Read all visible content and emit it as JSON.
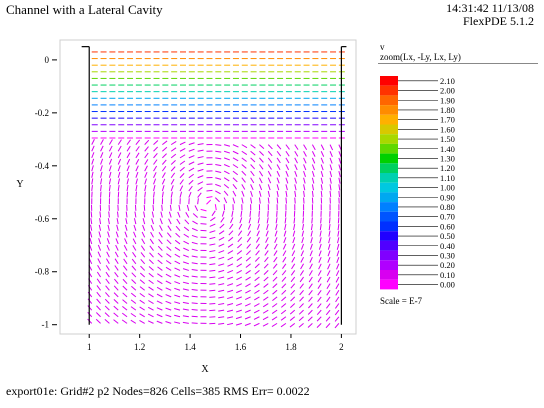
{
  "header": {
    "title": "Channel with a Lateral Cavity",
    "time": "14:31:42 11/13/08",
    "software": "FlexPDE 5.1.2"
  },
  "footer": {
    "info": "export01e:  Grid#2  p2  Nodes=826 Cells=385 RMS Err= 0.0022"
  },
  "legend": {
    "variable": "v",
    "subtitle": "zoom(Lx, -Ly, Lx, Ly)",
    "scale_label": "Scale = E-7",
    "levels": [
      "2.10",
      "2.00",
      "1.90",
      "1.80",
      "1.70",
      "1.60",
      "1.50",
      "1.40",
      "1.30",
      "1.20",
      "1.10",
      "1.00",
      "0.90",
      "0.80",
      "0.70",
      "0.60",
      "0.50",
      "0.40",
      "0.30",
      "0.20",
      "0.10",
      "0.00"
    ],
    "colors": [
      "#ff0000",
      "#ff3300",
      "#ff6600",
      "#ff8c00",
      "#ffb000",
      "#d8c800",
      "#a8d800",
      "#60d800",
      "#00d000",
      "#00d060",
      "#00d0b0",
      "#00c8e0",
      "#00a8f0",
      "#0080ff",
      "#0055ff",
      "#0030ff",
      "#2000ff",
      "#5000ff",
      "#8000ff",
      "#b000ff",
      "#d800f0",
      "#ff00ff"
    ]
  },
  "chart_data": {
    "type": "vector_field",
    "xlabel": "X",
    "ylabel": "Y",
    "xlim": [
      0.9,
      2.05
    ],
    "ylim": [
      -1.02,
      0.06
    ],
    "x_ticks": [
      "1",
      "1.2",
      "1.4",
      "1.6",
      "1.8",
      "2"
    ],
    "y_ticks": [
      "0",
      "-0.2",
      "-0.4",
      "-0.6",
      "-0.8",
      "-1"
    ],
    "x_tick_values": [
      1,
      1.2,
      1.4,
      1.6,
      1.8,
      2
    ],
    "y_tick_values": [
      0,
      -0.2,
      -0.4,
      -0.6,
      -0.8,
      -1
    ],
    "vortex_center": [
      1.47,
      -0.55
    ],
    "channel_region_y": [
      -0.3,
      0.05
    ],
    "cavity_walls_x": [
      1.0,
      2.0
    ],
    "cavity_bottom_y": -1.0
  }
}
